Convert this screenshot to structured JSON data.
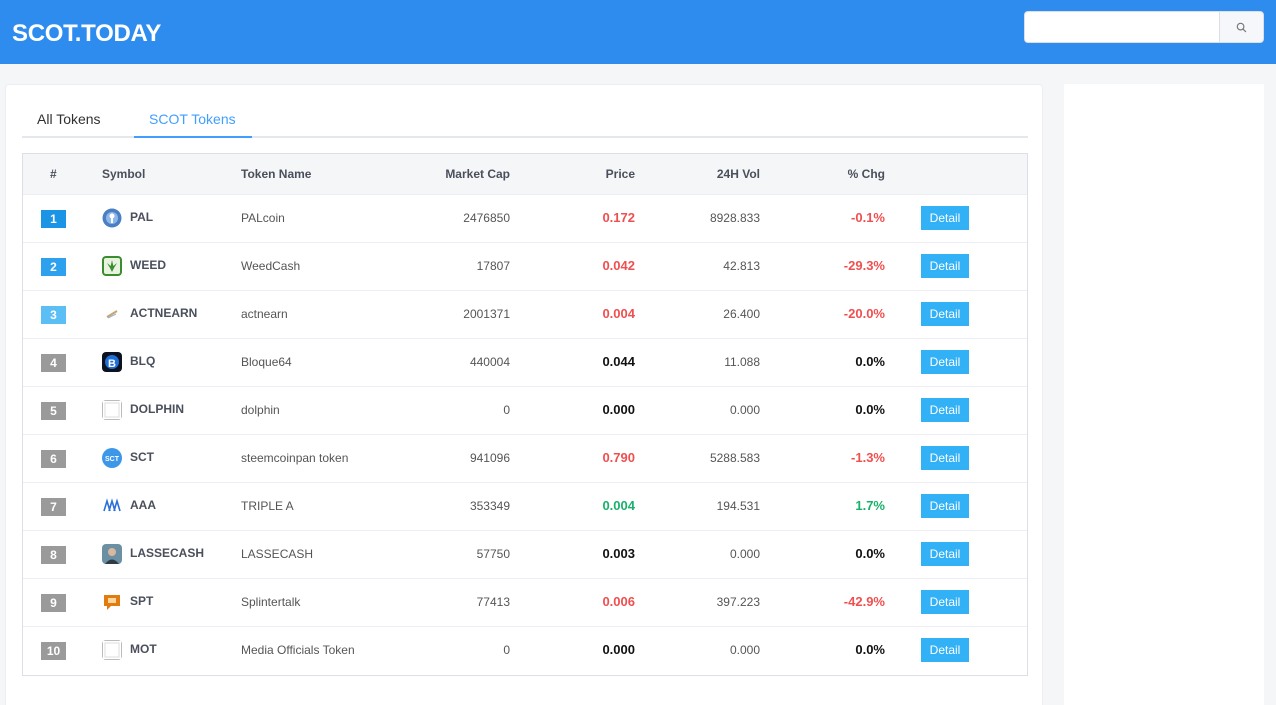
{
  "header": {
    "brand": "SCOT.TODAY",
    "search_placeholder": ""
  },
  "tabs": [
    {
      "label": "All Tokens",
      "active": false
    },
    {
      "label": "SCOT Tokens",
      "active": true
    }
  ],
  "table": {
    "columns": [
      "#",
      "Symbol",
      "Token Name",
      "Market Cap",
      "Price",
      "24H Vol",
      "% Chg"
    ],
    "detail_label": "Detail",
    "rows": [
      {
        "rank": "1",
        "symbol": "PAL",
        "name": "PALcoin",
        "market_cap": "2476850",
        "price": "0.172",
        "vol": "8928.833",
        "chg": "-0.1%",
        "trend": "down",
        "rank_color": "#1b94e6",
        "icon": "pal-coin-icon"
      },
      {
        "rank": "2",
        "symbol": "WEED",
        "name": "WeedCash",
        "market_cap": "17807",
        "price": "0.042",
        "vol": "42.813",
        "chg": "-29.3%",
        "trend": "down",
        "rank_color": "#2da1ee",
        "icon": "weed-leaf-icon"
      },
      {
        "rank": "3",
        "symbol": "ACTNEARN",
        "name": "actnearn",
        "market_cap": "2001371",
        "price": "0.004",
        "vol": "26.400",
        "chg": "-20.0%",
        "trend": "down",
        "rank_color": "#5bbef5",
        "icon": "actnearn-icon"
      },
      {
        "rank": "4",
        "symbol": "BLQ",
        "name": "Bloque64",
        "market_cap": "440004",
        "price": "0.044",
        "vol": "11.088",
        "chg": "0.0%",
        "trend": "flat",
        "rank_color": "#9a9a9a",
        "icon": "bloque-icon"
      },
      {
        "rank": "5",
        "symbol": "DOLPHIN",
        "name": "dolphin",
        "market_cap": "0",
        "price": "0.000",
        "vol": "0.000",
        "chg": "0.0%",
        "trend": "flat",
        "rank_color": "#9a9a9a",
        "icon": "blank-token-icon"
      },
      {
        "rank": "6",
        "symbol": "SCT",
        "name": "steemcoinpan token",
        "market_cap": "941096",
        "price": "0.790",
        "vol": "5288.583",
        "chg": "-1.3%",
        "trend": "down",
        "rank_color": "#9a9a9a",
        "icon": "sct-coin-icon"
      },
      {
        "rank": "7",
        "symbol": "AAA",
        "name": "TRIPLE A",
        "market_cap": "353349",
        "price": "0.004",
        "vol": "194.531",
        "chg": "1.7%",
        "trend": "up",
        "rank_color": "#9a9a9a",
        "icon": "triple-a-icon"
      },
      {
        "rank": "8",
        "symbol": "LASSECASH",
        "name": "LASSECASH",
        "market_cap": "57750",
        "price": "0.003",
        "vol": "0.000",
        "chg": "0.0%",
        "trend": "flat",
        "rank_color": "#9a9a9a",
        "icon": "avatar-icon"
      },
      {
        "rank": "9",
        "symbol": "SPT",
        "name": "Splintertalk",
        "market_cap": "77413",
        "price": "0.006",
        "vol": "397.223",
        "chg": "-42.9%",
        "trend": "down",
        "rank_color": "#9a9a9a",
        "icon": "splinter-chat-icon"
      },
      {
        "rank": "10",
        "symbol": "MOT",
        "name": "Media Officials Token",
        "market_cap": "0",
        "price": "0.000",
        "vol": "0.000",
        "chg": "0.0%",
        "trend": "flat",
        "rank_color": "#9a9a9a",
        "icon": "blank-token-icon"
      }
    ]
  },
  "colors": {
    "header": "#2f8cef",
    "accent": "#409eff",
    "detail": "#33b1f7",
    "down": "#f04f4f",
    "up": "#17b26a"
  }
}
